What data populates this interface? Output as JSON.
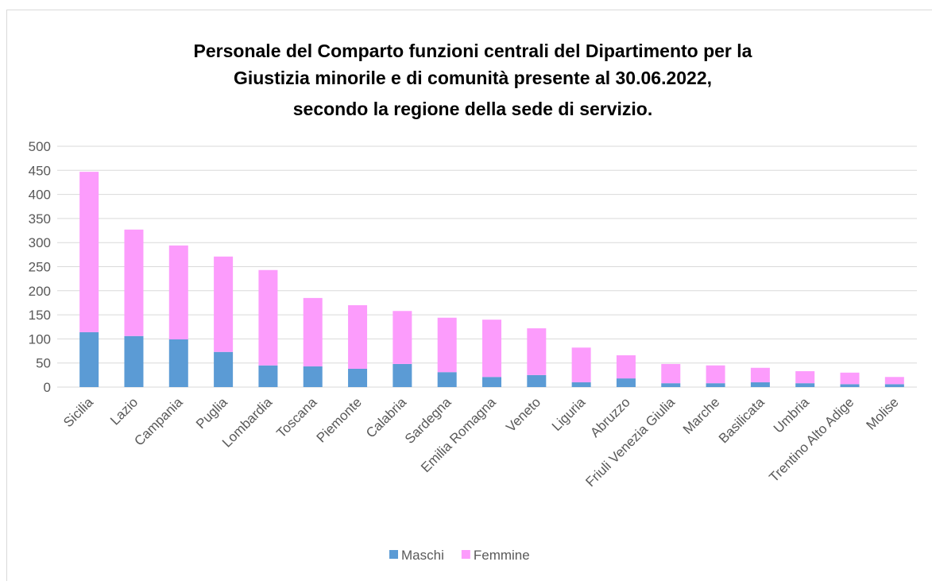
{
  "chart_data": {
    "type": "bar",
    "stacked": true,
    "title": [
      "Personale del Comparto funzioni centrali del Dipartimento per la",
      "Giustizia minorile e di comunità presente al 30.06.2022,",
      "secondo la regione della sede di servizio."
    ],
    "categories": [
      "Sicilia",
      "Lazio",
      "Campania",
      "Puglia",
      "Lombardia",
      "Toscana",
      "Piemonte",
      "Calabria",
      "Sardegna",
      "Emilia Romagna",
      "Veneto",
      "Liguria",
      "Abruzzo",
      "Friuli Venezia Giulia",
      "Marche",
      "Basilicata",
      "Umbria",
      "Trentino Alto Adige",
      "Molise"
    ],
    "series": [
      {
        "name": "Maschi",
        "color": "#5b9bd5",
        "values": [
          114,
          106,
          99,
          73,
          45,
          43,
          38,
          48,
          31,
          21,
          25,
          10,
          18,
          8,
          8,
          10,
          8,
          6,
          6
        ]
      },
      {
        "name": "Femmine",
        "color": "#fc9cfc",
        "values": [
          333,
          221,
          195,
          198,
          198,
          142,
          132,
          110,
          113,
          119,
          97,
          72,
          48,
          40,
          37,
          30,
          25,
          24,
          15
        ]
      }
    ],
    "ylim": [
      0,
      500
    ],
    "yticks": [
      0,
      50,
      100,
      150,
      200,
      250,
      300,
      350,
      400,
      450,
      500
    ],
    "grid": true,
    "legend": "bottom"
  }
}
